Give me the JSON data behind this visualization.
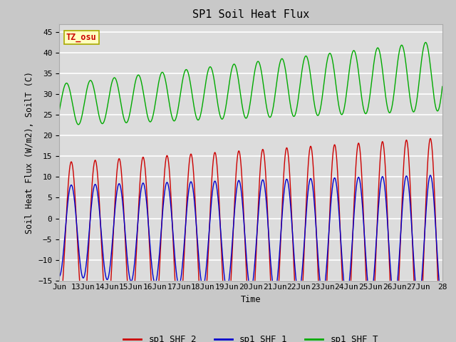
{
  "title": "SP1 Soil Heat Flux",
  "ylabel": "Soil Heat Flux (W/m2), SoilT (C)",
  "xlabel": "Time",
  "ylim": [
    -15,
    47
  ],
  "yticks": [
    -15,
    -10,
    -5,
    0,
    5,
    10,
    15,
    20,
    25,
    30,
    35,
    40,
    45
  ],
  "xtick_labels": [
    "Jun",
    "13Jun",
    "14Jun",
    "15Jun",
    "16Jun",
    "17Jun",
    "18Jun",
    "19Jun",
    "20Jun",
    "21Jun",
    "22Jun",
    "23Jun",
    "24Jun",
    "25Jun",
    "26Jun",
    "27Jun",
    "28"
  ],
  "color_shf2": "#cc0000",
  "color_shf1": "#0000cc",
  "color_shft": "#00aa00",
  "legend_labels": [
    "sp1_SHF_2",
    "sp1_SHF_1",
    "sp1_SHF_T"
  ],
  "tz_label": "TZ_osu",
  "fig_bg": "#c8c8c8",
  "plot_bg": "#dcdcdc"
}
